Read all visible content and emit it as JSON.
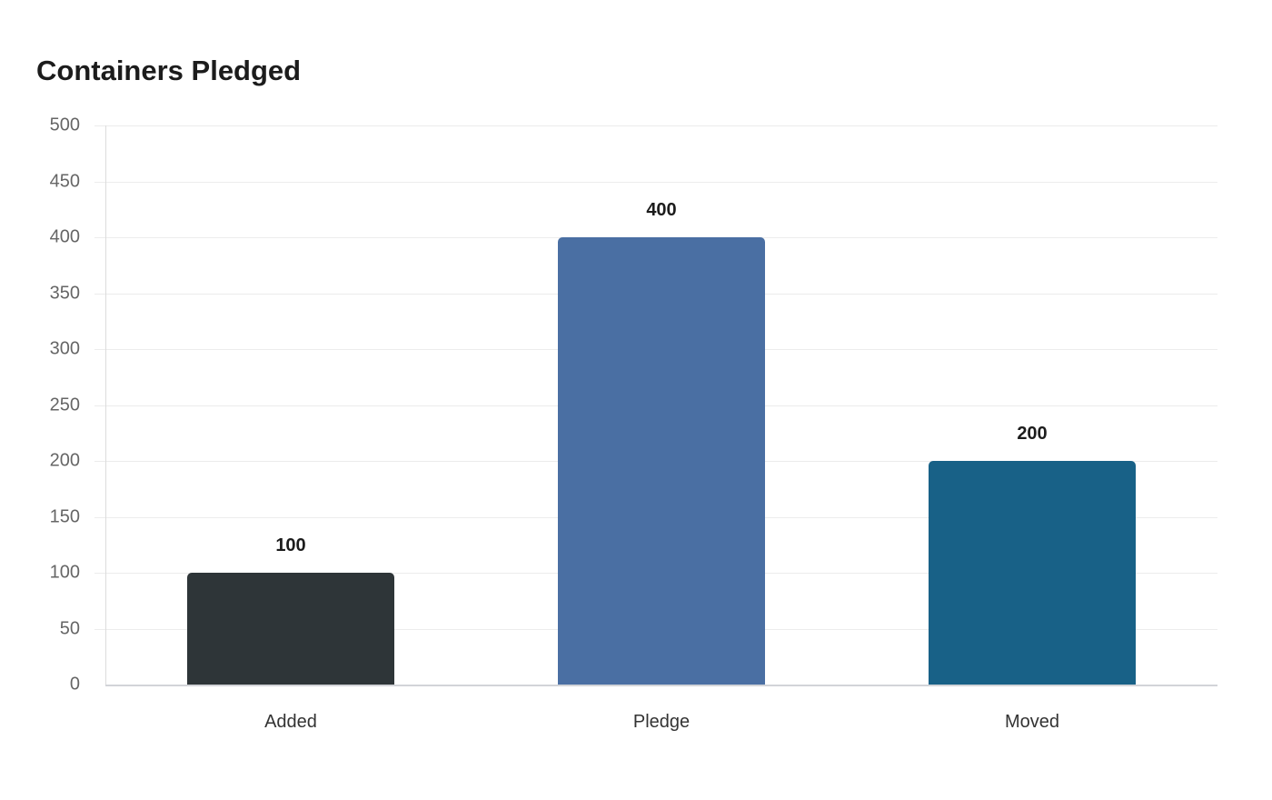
{
  "title": "Containers Pledged",
  "chart_data": {
    "type": "bar",
    "title": "Containers Pledged",
    "categories": [
      "Added",
      "Pledge",
      "Moved"
    ],
    "values": [
      100,
      400,
      200
    ],
    "colors": [
      "#2e3538",
      "#4a6fa3",
      "#186187"
    ],
    "data_labels": [
      "100",
      "400",
      "200"
    ],
    "xlabel": "",
    "ylabel": "",
    "ylim": [
      0,
      500
    ],
    "yticks": [
      "0",
      "50",
      "100",
      "150",
      "200",
      "250",
      "300",
      "350",
      "400",
      "450",
      "500"
    ],
    "grid": true,
    "legend": "none"
  }
}
